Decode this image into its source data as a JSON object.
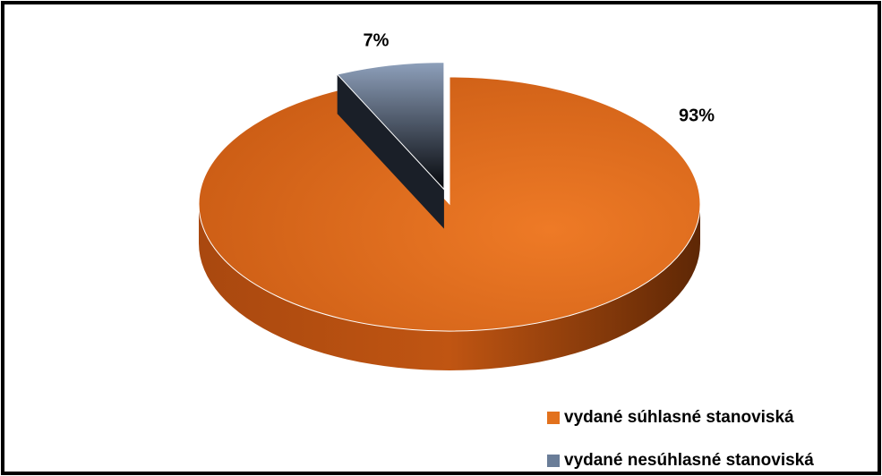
{
  "chart_data": {
    "type": "pie",
    "categories": [
      "vydané súhlasné stanoviská",
      "vydané nesúhlasné stanoviská"
    ],
    "values": [
      93,
      7
    ],
    "value_labels": [
      "93%",
      "7%"
    ],
    "colors": [
      "#e2711d",
      "#6a7d98"
    ],
    "exploded": [
      false,
      true
    ],
    "legend": "bottom-right"
  }
}
